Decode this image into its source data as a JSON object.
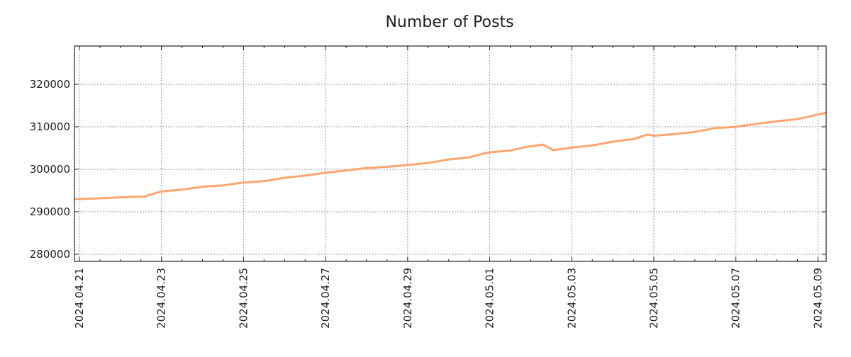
{
  "chart_data": {
    "type": "line",
    "title": "Number of Posts",
    "xlabel": "",
    "ylabel": "",
    "x_unit": "days since 2024.04.21",
    "xlim": [
      -0.12,
      18.2
    ],
    "ylim": [
      278333,
      329000
    ],
    "grid": true,
    "x_ticks": [
      {
        "day": 0,
        "label": "2024.04.21"
      },
      {
        "day": 2,
        "label": "2024.04.23"
      },
      {
        "day": 4,
        "label": "2024.04.25"
      },
      {
        "day": 6,
        "label": "2024.04.27"
      },
      {
        "day": 8,
        "label": "2024.04.29"
      },
      {
        "day": 10,
        "label": "2024.05.01"
      },
      {
        "day": 12,
        "label": "2024.05.03"
      },
      {
        "day": 14,
        "label": "2024.05.05"
      },
      {
        "day": 16,
        "label": "2024.05.07"
      },
      {
        "day": 18,
        "label": "2024.05.09"
      }
    ],
    "y_ticks": [
      {
        "value": 280000,
        "label": "280000"
      },
      {
        "value": 290000,
        "label": "290000"
      },
      {
        "value": 300000,
        "label": "300000"
      },
      {
        "value": 310000,
        "label": "310000"
      },
      {
        "value": 320000,
        "label": "320000"
      }
    ],
    "series": [
      {
        "name": "Number of Posts",
        "color": "#FFA66F",
        "x": [
          -0.12,
          0,
          0.25,
          0.6,
          1.0,
          1.3,
          1.6,
          1.75,
          2.0,
          2.5,
          3.0,
          3.5,
          4.0,
          4.5,
          5.0,
          5.5,
          6.0,
          6.5,
          7.0,
          7.5,
          8.0,
          8.5,
          9.0,
          9.5,
          9.8,
          10.0,
          10.5,
          10.9,
          11.3,
          11.55,
          12.0,
          12.5,
          13.0,
          13.5,
          13.85,
          14.0,
          14.5,
          15.0,
          15.5,
          16.0,
          16.5,
          17.0,
          17.5,
          18.0,
          18.2
        ],
        "values": [
          293000,
          293000,
          293100,
          293200,
          293400,
          293500,
          293600,
          294100,
          294800,
          295200,
          295900,
          296200,
          296900,
          297200,
          298000,
          298500,
          299200,
          299700,
          300300,
          300600,
          301000,
          301500,
          302300,
          302800,
          303600,
          304000,
          304400,
          305300,
          305800,
          304500,
          305100,
          305600,
          306500,
          307100,
          308200,
          307900,
          308300,
          308800,
          309700,
          310000,
          310700,
          311300,
          311800,
          312900,
          313300
        ]
      }
    ]
  }
}
